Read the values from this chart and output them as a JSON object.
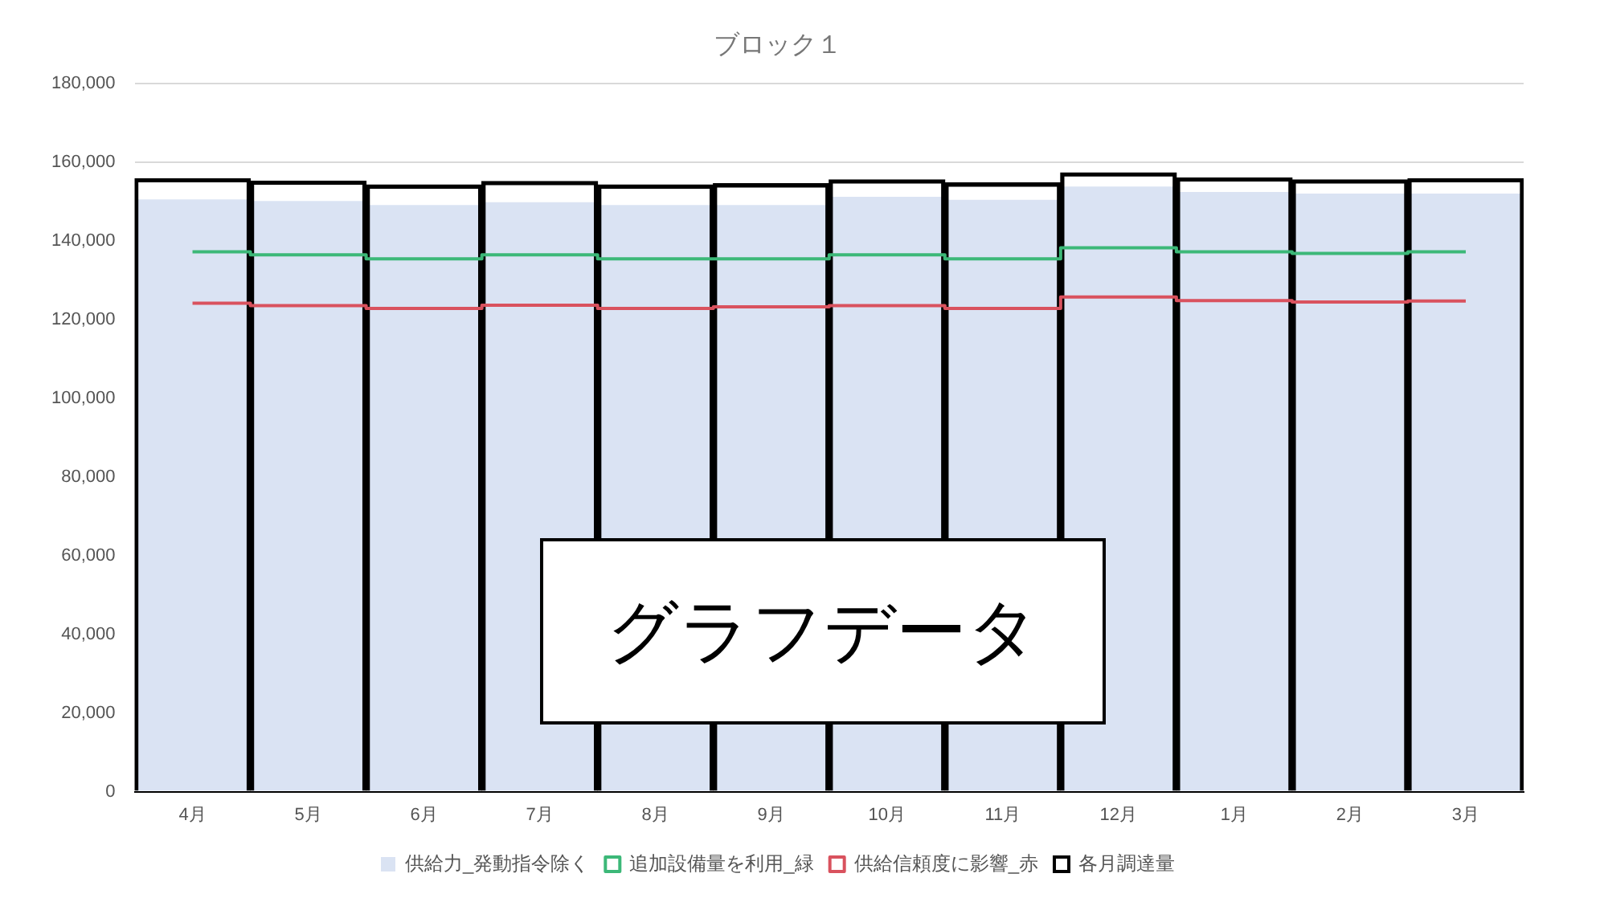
{
  "chart_data": {
    "type": "bar",
    "title": "ブロック１",
    "categories": [
      "4月",
      "5月",
      "6月",
      "7月",
      "8月",
      "9月",
      "10月",
      "11月",
      "12月",
      "1月",
      "2月",
      "3月"
    ],
    "series": [
      {
        "name": "供給力_発動指令除く",
        "color": "#dae3f3",
        "values": [
          150600,
          150200,
          149200,
          149900,
          149200,
          149200,
          151300,
          150500,
          153900,
          152500,
          152100,
          152100
        ]
      },
      {
        "name": "追加設備量を利用_緑",
        "color": "#3cb878",
        "type": "step",
        "values": [
          137300,
          136500,
          135500,
          136500,
          135500,
          135500,
          136500,
          135500,
          138300,
          137300,
          136900,
          137300
        ]
      },
      {
        "name": "供給信頼度に影響_赤",
        "color": "#d9525e",
        "type": "step",
        "values": [
          124200,
          123600,
          122900,
          123700,
          122900,
          123300,
          123600,
          122900,
          125800,
          124900,
          124500,
          124800
        ]
      },
      {
        "name": "各月調達量",
        "color": "#000000",
        "values": [
          155900,
          155300,
          154300,
          155200,
          154300,
          154600,
          155600,
          154800,
          157400,
          156100,
          155600,
          155900
        ]
      }
    ],
    "ylim": [
      0,
      180000
    ],
    "yticks": [
      {
        "value": 0,
        "label": "0"
      },
      {
        "value": 20000,
        "label": "20,000"
      },
      {
        "value": 40000,
        "label": "40,000"
      },
      {
        "value": 60000,
        "label": "60,000"
      },
      {
        "value": 80000,
        "label": "80,000"
      },
      {
        "value": 100000,
        "label": "100,000"
      },
      {
        "value": 120000,
        "label": "120,000"
      },
      {
        "value": 140000,
        "label": "140,000"
      },
      {
        "value": 160000,
        "label": "160,000"
      },
      {
        "value": 180000,
        "label": "180,000"
      }
    ],
    "grid": "y",
    "legend": "bottom",
    "marker": "none",
    "line_style": "solid",
    "annotations": [
      "グラフデータ"
    ]
  }
}
